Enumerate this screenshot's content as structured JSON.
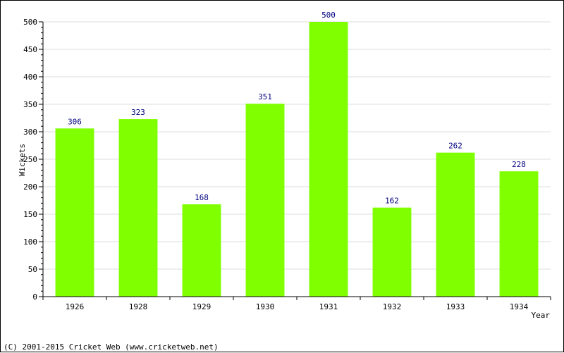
{
  "chart_data": {
    "type": "bar",
    "categories": [
      "1926",
      "1928",
      "1929",
      "1930",
      "1931",
      "1932",
      "1933",
      "1934"
    ],
    "values": [
      306,
      323,
      168,
      351,
      500,
      162,
      262,
      228
    ],
    "xlabel": "Year",
    "ylabel": "Wickets",
    "ylim": [
      0,
      500
    ],
    "yticks": [
      0,
      50,
      100,
      150,
      200,
      250,
      300,
      350,
      400,
      450,
      500
    ],
    "grid": true,
    "bar_color": "#80ff00",
    "value_label_color": "#000080"
  },
  "footer": "(C) 2001-2015 Cricket Web (www.cricketweb.net)"
}
